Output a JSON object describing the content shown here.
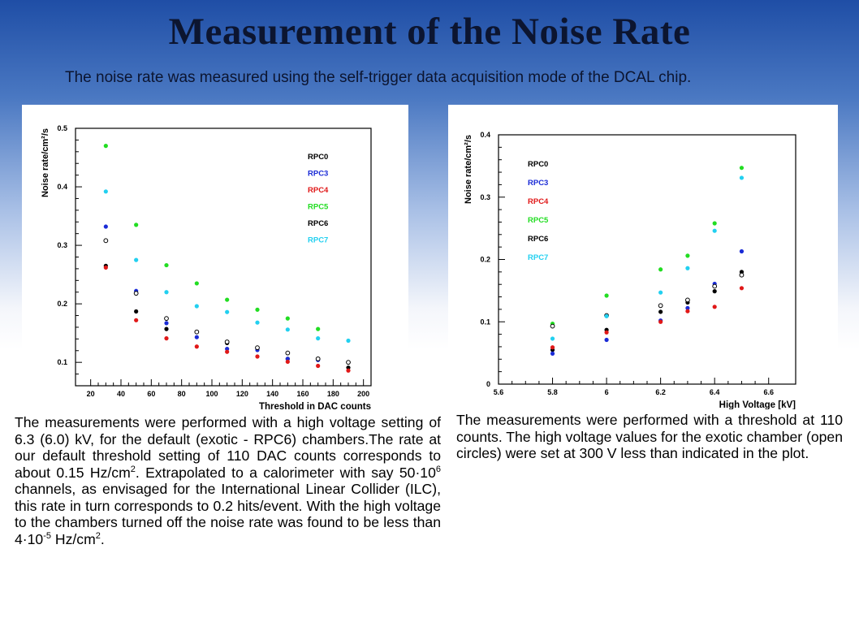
{
  "slide": {
    "title": "Measurement of the Noise Rate",
    "subtitle": "The noise rate was measured using the self-trigger data acquisition mode of the DCAL chip."
  },
  "text_left": {
    "p1": "The measurements were performed with a high voltage setting of 6.3 (6.0) kV, for the default (exotic - RPC6) chambers.The rate at our default threshold setting of 110 DAC counts corresponds to about 0.15 Hz/cm",
    "sup1": "2",
    "p2": ". Extrapolated to a calorimeter with say 50·10",
    "sup2": "6",
    "p3": " channels, as envisaged for the International Linear Collider (ILC), this rate in turn corresponds to 0.2 hits/event. With the high voltage to the chambers turned off the noise rate was found to be less than 4·10",
    "sup3": "-5",
    "p4": " Hz/cm",
    "sup4": "2",
    "p5": "."
  },
  "text_right": {
    "p1": "The measurements were performed with a threshold at 110 counts. The high voltage values for the exotic chamber (open circles) were set at 300 V less than indicated in the plot."
  },
  "chart_data": [
    {
      "type": "scatter",
      "title": "",
      "xlabel": "Threshold in DAC counts",
      "ylabel": "Noise rate/cm²/s",
      "xlim": [
        10,
        205
      ],
      "ylim": [
        0.06,
        0.5
      ],
      "xticks": [
        20,
        40,
        60,
        80,
        100,
        120,
        140,
        160,
        180,
        200
      ],
      "yticks": [
        0.1,
        0.2,
        0.3,
        0.4,
        0.5
      ],
      "legend_position": "top-right",
      "series": [
        {
          "name": "RPC0",
          "color": "#000000",
          "marker": "filled",
          "x": [
            30,
            50,
            70,
            110,
            130,
            150,
            170,
            190
          ],
          "y": [
            0.265,
            0.187,
            0.157,
            0.133,
            0.124,
            0.106,
            0.105,
            0.091
          ]
        },
        {
          "name": "RPC3",
          "color": "#1a2bd6",
          "marker": "filled",
          "x": [
            30,
            50,
            70,
            90,
            110,
            130,
            150,
            170
          ],
          "y": [
            0.332,
            0.222,
            0.167,
            0.143,
            0.123,
            0.121,
            0.106,
            0.104
          ]
        },
        {
          "name": "RPC4",
          "color": "#e01818",
          "marker": "filled",
          "x": [
            30,
            50,
            70,
            90,
            110,
            130,
            150,
            170,
            190
          ],
          "y": [
            0.262,
            0.172,
            0.141,
            0.127,
            0.118,
            0.11,
            0.101,
            0.094,
            0.086
          ]
        },
        {
          "name": "RPC5",
          "color": "#22dd22",
          "marker": "filled",
          "x": [
            30,
            50,
            70,
            90,
            110,
            130,
            150,
            170
          ],
          "y": [
            0.47,
            0.335,
            0.266,
            0.235,
            0.207,
            0.19,
            0.175,
            0.157
          ]
        },
        {
          "name": "RPC6",
          "color": "#000000",
          "marker": "open",
          "x": [
            30,
            50,
            70,
            90,
            110,
            130,
            150,
            170,
            190
          ],
          "y": [
            0.308,
            0.218,
            0.175,
            0.152,
            0.135,
            0.125,
            0.116,
            0.106,
            0.1
          ]
        },
        {
          "name": "RPC7",
          "color": "#22d0f0",
          "marker": "filled",
          "x": [
            30,
            50,
            70,
            90,
            110,
            130,
            150,
            170,
            190
          ],
          "y": [
            0.392,
            0.275,
            0.22,
            0.196,
            0.186,
            0.168,
            0.156,
            0.141,
            0.137
          ]
        }
      ]
    },
    {
      "type": "scatter",
      "title": "",
      "xlabel": "High Voltage [kV]",
      "ylabel": "Noise rate/cm²/s",
      "xlim": [
        5.6,
        6.7
      ],
      "ylim": [
        0,
        0.4
      ],
      "xticks": [
        5.6,
        5.8,
        6,
        6.2,
        6.4,
        6.6
      ],
      "yticks": [
        0,
        0.1,
        0.2,
        0.3,
        0.4
      ],
      "legend_position": "top-left",
      "series": [
        {
          "name": "RPC0",
          "color": "#000000",
          "marker": "filled",
          "x": [
            5.8,
            6.0,
            6.2,
            6.3,
            6.4,
            6.5
          ],
          "y": [
            0.055,
            0.087,
            0.116,
            0.131,
            0.149,
            0.18
          ]
        },
        {
          "name": "RPC3",
          "color": "#1a2bd6",
          "marker": "filled",
          "x": [
            5.8,
            6.0,
            6.2,
            6.3,
            6.4,
            6.5
          ],
          "y": [
            0.049,
            0.071,
            0.102,
            0.122,
            0.161,
            0.213
          ]
        },
        {
          "name": "RPC4",
          "color": "#e01818",
          "marker": "filled",
          "x": [
            5.8,
            6.0,
            6.2,
            6.3,
            6.4,
            6.5
          ],
          "y": [
            0.059,
            0.083,
            0.1,
            0.117,
            0.124,
            0.154
          ]
        },
        {
          "name": "RPC5",
          "color": "#22dd22",
          "marker": "filled",
          "x": [
            5.8,
            6.0,
            6.2,
            6.3,
            6.4,
            6.5
          ],
          "y": [
            0.097,
            0.142,
            0.184,
            0.206,
            0.258,
            0.347
          ]
        },
        {
          "name": "RPC6",
          "color": "#000000",
          "marker": "open",
          "x": [
            5.8,
            6.0,
            6.2,
            6.3,
            6.4,
            6.5
          ],
          "y": [
            0.093,
            0.11,
            0.126,
            0.135,
            0.157,
            0.175
          ]
        },
        {
          "name": "RPC7",
          "color": "#22d0f0",
          "marker": "filled",
          "x": [
            5.8,
            6.0,
            6.2,
            6.3,
            6.4,
            6.5
          ],
          "y": [
            0.073,
            0.109,
            0.147,
            0.186,
            0.246,
            0.331
          ]
        }
      ]
    }
  ]
}
